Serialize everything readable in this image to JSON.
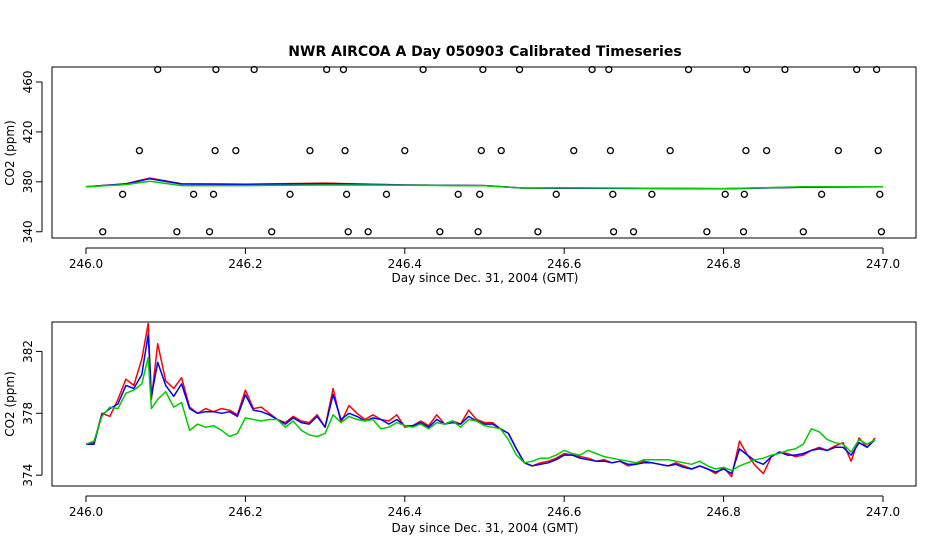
{
  "chart_data": [
    {
      "type": "scatter+line",
      "title": "NWR AIRCOA A  Day 050903  Calibrated Timeseries",
      "xlabel": "Day since Dec. 31, 2004 (GMT)",
      "ylabel": "CO2 (ppm)",
      "xlim": [
        246.0,
        247.0
      ],
      "ylim": [
        335,
        472
      ],
      "xticks": [
        "246.0",
        "246.2",
        "246.4",
        "246.6",
        "246.8",
        "247.0"
      ],
      "xtick_values": [
        246.0,
        246.2,
        246.4,
        246.6,
        246.8,
        247.0
      ],
      "yticks": [
        "340",
        "380",
        "420",
        "460"
      ],
      "ytick_values": [
        340,
        380,
        420,
        460
      ],
      "points": {
        "name": "Calibration standards",
        "x": [
          246.021,
          246.046,
          246.067,
          246.09,
          246.114,
          246.135,
          246.155,
          246.16,
          246.162,
          246.163,
          246.188,
          246.211,
          246.233,
          246.256,
          246.281,
          246.302,
          246.323,
          246.325,
          246.327,
          246.329,
          246.354,
          246.377,
          246.4,
          246.423,
          246.444,
          246.467,
          246.492,
          246.494,
          246.496,
          246.498,
          246.521,
          246.544,
          246.567,
          246.59,
          246.612,
          246.635,
          246.656,
          246.658,
          246.661,
          246.662,
          246.687,
          246.71,
          246.733,
          246.756,
          246.779,
          246.802,
          246.825,
          246.826,
          246.828,
          246.829,
          246.854,
          246.877,
          246.9,
          246.923,
          246.944,
          246.967,
          246.992,
          246.994,
          246.996,
          246.998
        ],
        "y": [
          340,
          370,
          405,
          470,
          340,
          370,
          340,
          370,
          405,
          470,
          405,
          470,
          340,
          370,
          405,
          470,
          470,
          405,
          370,
          340,
          340,
          370,
          405,
          470,
          340,
          370,
          340,
          370,
          405,
          470,
          405,
          470,
          340,
          370,
          405,
          470,
          470,
          405,
          370,
          340,
          340,
          370,
          405,
          470,
          340,
          370,
          340,
          370,
          405,
          470,
          405,
          470,
          340,
          370,
          405,
          470,
          470,
          405,
          370,
          340
        ]
      },
      "series": [
        {
          "name": "",
          "color": "#ff0000",
          "x": [
            246.0,
            246.05,
            246.08,
            246.12,
            246.2,
            246.3,
            246.4,
            246.5,
            246.55,
            246.6,
            246.7,
            246.8,
            246.9,
            247.0
          ],
          "y": [
            376,
            378.5,
            383,
            378.5,
            378,
            379,
            377.5,
            377,
            375,
            375,
            374.7,
            374.5,
            375.8,
            376
          ]
        },
        {
          "name": "",
          "color": "#0000ff",
          "x": [
            246.0,
            246.05,
            246.08,
            246.12,
            246.2,
            246.3,
            246.4,
            246.5,
            246.55,
            246.6,
            246.7,
            246.8,
            246.9,
            247.0
          ],
          "y": [
            376,
            378.3,
            382.5,
            378.3,
            378,
            378.5,
            377.5,
            377,
            375,
            375,
            374.7,
            374.5,
            375.6,
            376
          ]
        },
        {
          "name": "",
          "color": "#00cc00",
          "x": [
            246.0,
            246.05,
            246.08,
            246.12,
            246.2,
            246.3,
            246.4,
            246.5,
            246.55,
            246.6,
            246.7,
            246.8,
            246.9,
            247.0
          ],
          "y": [
            376,
            377.8,
            380.5,
            377,
            377,
            377.5,
            377.3,
            376.8,
            375,
            375.2,
            374.9,
            374.6,
            376,
            376
          ]
        }
      ]
    },
    {
      "type": "line",
      "title": "",
      "xlabel": "Day since Dec. 31, 2004 (GMT)",
      "ylabel": "CO2 (ppm)",
      "xlim": [
        246.0,
        247.0
      ],
      "ylim": [
        373.3,
        383.9
      ],
      "xticks": [
        "246.0",
        "246.2",
        "246.4",
        "246.6",
        "246.8",
        "247.0"
      ],
      "xtick_values": [
        246.0,
        246.2,
        246.4,
        246.6,
        246.8,
        247.0
      ],
      "yticks": [
        "374",
        "378",
        "382"
      ],
      "ytick_values": [
        374,
        378,
        382
      ],
      "series": [
        {
          "name": "",
          "color": "#ff0000",
          "x": [
            246.0,
            246.01,
            246.02,
            246.03,
            246.04,
            246.05,
            246.06,
            246.07,
            246.078,
            246.082,
            246.09,
            246.1,
            246.11,
            246.12,
            246.13,
            246.14,
            246.15,
            246.16,
            246.17,
            246.18,
            246.19,
            246.2,
            246.21,
            246.22,
            246.23,
            246.24,
            246.25,
            246.26,
            246.27,
            246.28,
            246.29,
            246.3,
            246.31,
            246.32,
            246.33,
            246.34,
            246.35,
            246.36,
            246.37,
            246.38,
            246.39,
            246.4,
            246.41,
            246.42,
            246.43,
            246.44,
            246.45,
            246.46,
            246.47,
            246.48,
            246.49,
            246.5,
            246.51,
            246.52,
            246.53,
            246.54,
            246.55,
            246.56,
            246.57,
            246.58,
            246.59,
            246.6,
            246.61,
            246.62,
            246.63,
            246.64,
            246.65,
            246.66,
            246.67,
            246.68,
            246.69,
            246.7,
            246.71,
            246.72,
            246.73,
            246.74,
            246.75,
            246.76,
            246.77,
            246.78,
            246.79,
            246.8,
            246.81,
            246.82,
            246.83,
            246.84,
            246.85,
            246.86,
            246.87,
            246.88,
            246.89,
            246.9,
            246.91,
            246.92,
            246.93,
            246.94,
            246.95,
            246.96,
            246.97,
            246.98,
            246.99
          ],
          "y": [
            376,
            376.1,
            378,
            377.8,
            378.9,
            380.2,
            379.8,
            381.5,
            383.8,
            378.9,
            382.5,
            380.1,
            379.6,
            380.3,
            378.4,
            378,
            378.3,
            378.1,
            378.3,
            378.2,
            377.9,
            379.5,
            378.3,
            378.4,
            378,
            377.6,
            377.4,
            377.8,
            377.5,
            377.4,
            377.9,
            377.1,
            379.6,
            377.4,
            378.5,
            378,
            377.6,
            377.9,
            377.6,
            377.5,
            377.9,
            377.1,
            377.2,
            377.5,
            377.2,
            377.9,
            377.3,
            377.5,
            377.3,
            378.2,
            377.6,
            377.4,
            377.4,
            377,
            376.7,
            375.7,
            374.8,
            374.6,
            374.8,
            374.9,
            375.1,
            375.4,
            375.3,
            375.2,
            375.1,
            374.9,
            375,
            374.8,
            374.9,
            374.6,
            374.7,
            374.9,
            374.8,
            374.7,
            374.6,
            374.8,
            374.6,
            374.4,
            374.6,
            374.4,
            374.1,
            374.5,
            373.9,
            376.2,
            375.3,
            374.6,
            374.1,
            375.2,
            375.5,
            375.4,
            375.2,
            375.3,
            375.6,
            375.8,
            375.6,
            375.9,
            376.1,
            374.9,
            376.4,
            375.8,
            376.4
          ]
        },
        {
          "name": "",
          "color": "#0000ff",
          "x": [
            246.0,
            246.01,
            246.02,
            246.03,
            246.04,
            246.05,
            246.06,
            246.07,
            246.078,
            246.082,
            246.09,
            246.1,
            246.11,
            246.12,
            246.13,
            246.14,
            246.15,
            246.16,
            246.17,
            246.18,
            246.19,
            246.2,
            246.21,
            246.22,
            246.23,
            246.24,
            246.25,
            246.26,
            246.27,
            246.28,
            246.29,
            246.3,
            246.31,
            246.32,
            246.33,
            246.34,
            246.35,
            246.36,
            246.37,
            246.38,
            246.39,
            246.4,
            246.41,
            246.42,
            246.43,
            246.44,
            246.45,
            246.46,
            246.47,
            246.48,
            246.49,
            246.5,
            246.51,
            246.52,
            246.53,
            246.54,
            246.55,
            246.56,
            246.57,
            246.58,
            246.59,
            246.6,
            246.61,
            246.62,
            246.63,
            246.64,
            246.65,
            246.66,
            246.67,
            246.68,
            246.69,
            246.7,
            246.71,
            246.72,
            246.73,
            246.74,
            246.75,
            246.76,
            246.77,
            246.78,
            246.79,
            246.8,
            246.81,
            246.82,
            246.83,
            246.84,
            246.85,
            246.86,
            246.87,
            246.88,
            246.89,
            246.9,
            246.91,
            246.92,
            246.93,
            246.94,
            246.95,
            246.96,
            246.97,
            246.98,
            246.99
          ],
          "y": [
            376,
            376,
            377.9,
            378.3,
            378.6,
            379.8,
            379.6,
            380.5,
            383.1,
            379.1,
            381.3,
            379.8,
            379.1,
            379.9,
            378.3,
            378,
            378.1,
            378.1,
            378,
            378.1,
            377.8,
            379.2,
            378.2,
            378.1,
            377.9,
            377.6,
            377.3,
            377.7,
            377.4,
            377.3,
            377.8,
            377.1,
            379.2,
            377.6,
            378,
            377.8,
            377.5,
            377.7,
            377.6,
            377.3,
            377.6,
            377.2,
            377.2,
            377.4,
            377.1,
            377.6,
            377.3,
            377.4,
            377.3,
            377.8,
            377.5,
            377.3,
            377.3,
            377,
            376.7,
            375.7,
            374.8,
            374.6,
            374.7,
            374.8,
            375,
            375.3,
            375.3,
            375.1,
            375,
            374.9,
            374.9,
            374.8,
            374.9,
            374.7,
            374.7,
            374.8,
            374.8,
            374.7,
            374.6,
            374.7,
            374.5,
            374.4,
            374.6,
            374.4,
            374.2,
            374.4,
            374.1,
            375.7,
            375.3,
            374.9,
            374.7,
            375.2,
            375.5,
            375.3,
            375.3,
            375.4,
            375.6,
            375.7,
            375.6,
            375.8,
            375.8,
            375.3,
            376.1,
            375.8,
            376.3
          ]
        },
        {
          "name": "",
          "color": "#00cc00",
          "x": [
            246.0,
            246.01,
            246.02,
            246.03,
            246.04,
            246.05,
            246.06,
            246.07,
            246.078,
            246.082,
            246.09,
            246.1,
            246.11,
            246.12,
            246.13,
            246.14,
            246.15,
            246.16,
            246.17,
            246.18,
            246.19,
            246.2,
            246.21,
            246.22,
            246.23,
            246.24,
            246.25,
            246.26,
            246.27,
            246.28,
            246.29,
            246.3,
            246.31,
            246.32,
            246.33,
            246.34,
            246.35,
            246.36,
            246.37,
            246.38,
            246.39,
            246.4,
            246.41,
            246.42,
            246.43,
            246.44,
            246.45,
            246.46,
            246.47,
            246.48,
            246.49,
            246.5,
            246.51,
            246.52,
            246.53,
            246.54,
            246.55,
            246.56,
            246.57,
            246.58,
            246.59,
            246.6,
            246.61,
            246.62,
            246.63,
            246.64,
            246.65,
            246.66,
            246.67,
            246.68,
            246.69,
            246.7,
            246.71,
            246.72,
            246.73,
            246.74,
            246.75,
            246.76,
            246.77,
            246.78,
            246.79,
            246.8,
            246.81,
            246.82,
            246.83,
            246.84,
            246.85,
            246.86,
            246.87,
            246.88,
            246.89,
            246.9,
            246.91,
            246.92,
            246.93,
            246.94,
            246.95,
            246.96,
            246.97,
            246.98,
            246.99
          ],
          "y": [
            376,
            376.2,
            377.8,
            378.4,
            378.3,
            379.3,
            379.5,
            379.9,
            381.6,
            378.3,
            378.9,
            379.4,
            378.4,
            378.7,
            376.9,
            377.3,
            377.1,
            377.2,
            376.9,
            376.5,
            376.7,
            377.7,
            377.6,
            377.5,
            377.6,
            377.6,
            377.1,
            377.5,
            376.9,
            376.6,
            376.5,
            376.7,
            377.9,
            377.4,
            377.8,
            377.6,
            377.5,
            377.6,
            377,
            377.1,
            377.4,
            377.2,
            377.1,
            377.3,
            377,
            377.4,
            377.3,
            377.5,
            377.1,
            377.6,
            377.5,
            377.2,
            377.1,
            377,
            376.3,
            375.3,
            374.8,
            374.9,
            375.1,
            375.1,
            375.3,
            375.6,
            375.4,
            375.3,
            375.6,
            375.4,
            375.2,
            375.1,
            375,
            374.9,
            374.8,
            375,
            375,
            375,
            375,
            374.9,
            374.8,
            374.7,
            374.9,
            374.6,
            374.4,
            374.5,
            374.3,
            374.6,
            374.8,
            375,
            375.1,
            375.3,
            375.4,
            375.6,
            375.7,
            376,
            377,
            376.8,
            376.3,
            376.1,
            376,
            375.5,
            376.3,
            376,
            376.3
          ]
        }
      ]
    }
  ]
}
